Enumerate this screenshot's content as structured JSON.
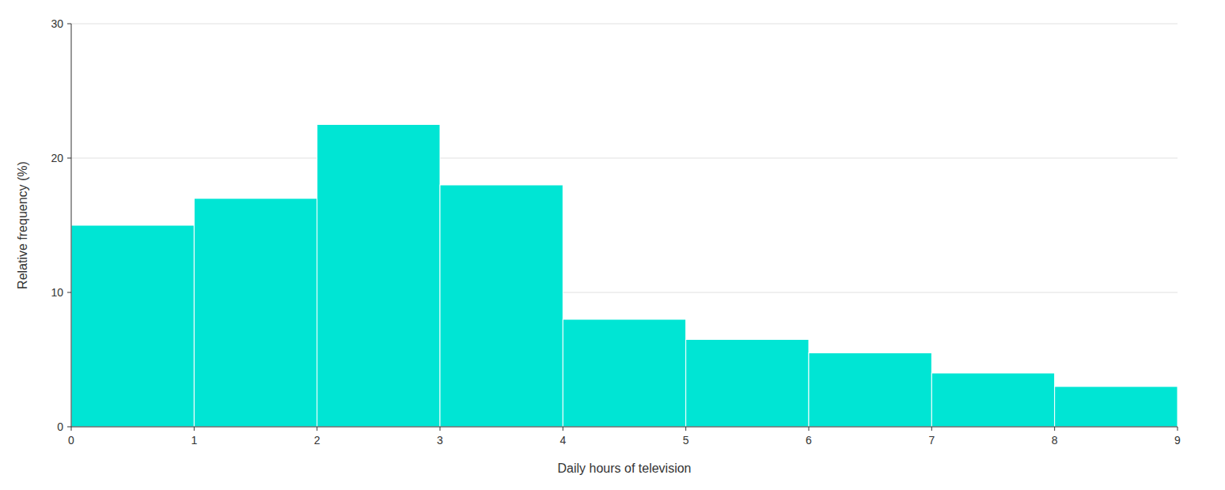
{
  "chart_data": {
    "type": "histogram",
    "bins": [
      0,
      1,
      2,
      3,
      4,
      5,
      6,
      7,
      8,
      9
    ],
    "values": [
      15,
      17,
      22.5,
      18,
      8,
      6.5,
      5.5,
      4,
      3
    ],
    "color": "#00E5D4",
    "x_label": "Daily hours of television",
    "y_label": "Relative frequency (%)",
    "xlim": [
      0,
      9
    ],
    "ylim": [
      0,
      30
    ],
    "xticks": [
      0,
      1,
      2,
      3,
      4,
      5,
      6,
      7,
      8,
      9
    ],
    "yticks": [
      0,
      10,
      20,
      30
    ],
    "grid": true
  }
}
